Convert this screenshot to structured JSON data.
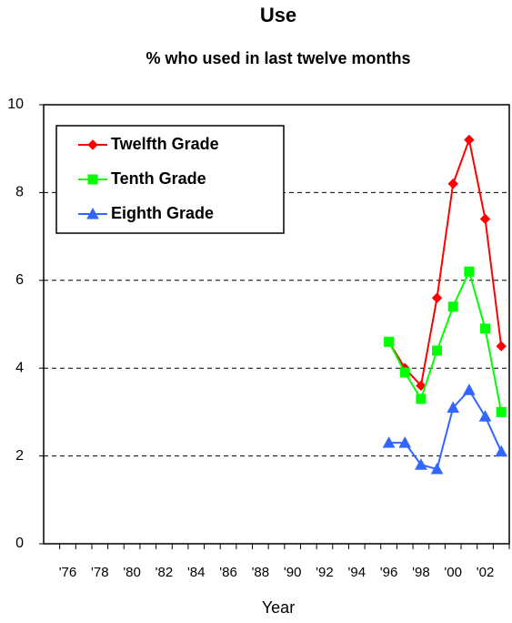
{
  "chart_data": {
    "type": "line",
    "title": "Use",
    "subtitle": "% who used in last twelve months",
    "x_label": "Year",
    "categories": [
      null,
      "'76",
      null,
      "'78",
      null,
      "'80",
      null,
      "'82",
      null,
      "'84",
      null,
      "'86",
      null,
      "'88",
      null,
      "'90",
      null,
      "'92",
      null,
      "'94",
      null,
      "'96",
      null,
      "'98",
      null,
      "'00",
      null,
      "'02",
      null
    ],
    "series": [
      {
        "name": "Twelfth Grade",
        "color": "#ff0000",
        "marker": "diamond",
        "values": [
          null,
          null,
          null,
          null,
          null,
          null,
          null,
          null,
          null,
          null,
          null,
          null,
          null,
          null,
          null,
          null,
          null,
          null,
          null,
          null,
          null,
          4.6,
          4.0,
          3.6,
          5.6,
          8.2,
          9.2,
          7.4,
          4.5
        ]
      },
      {
        "name": "Tenth Grade",
        "color": "#00ff00",
        "marker": "square",
        "values": [
          null,
          null,
          null,
          null,
          null,
          null,
          null,
          null,
          null,
          null,
          null,
          null,
          null,
          null,
          null,
          null,
          null,
          null,
          null,
          null,
          null,
          4.6,
          3.9,
          3.3,
          4.4,
          5.4,
          6.2,
          4.9,
          3.0
        ]
      },
      {
        "name": "Eighth Grade",
        "color": "#3366ff",
        "marker": "triangle",
        "values": [
          null,
          null,
          null,
          null,
          null,
          null,
          null,
          null,
          null,
          null,
          null,
          null,
          null,
          null,
          null,
          null,
          null,
          null,
          null,
          null,
          null,
          2.3,
          2.3,
          1.8,
          1.7,
          3.1,
          3.5,
          2.9,
          2.1
        ]
      }
    ],
    "ylim": [
      0,
      10
    ],
    "yticks": [
      0,
      2,
      4,
      6,
      8,
      10
    ],
    "grid": true,
    "legend": "upper left"
  }
}
